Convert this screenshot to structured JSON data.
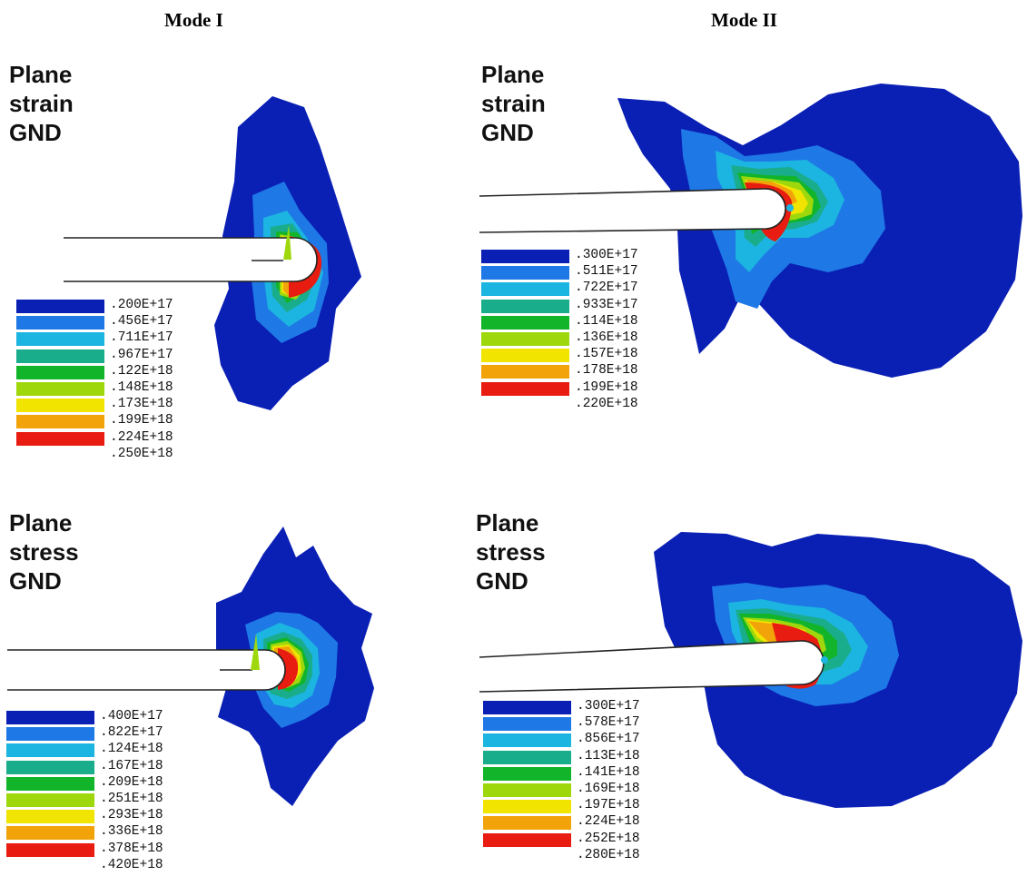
{
  "columns": [
    "Mode I",
    "Mode II"
  ],
  "panels": [
    {
      "title_lines": [
        "Plane",
        "strain",
        "GND"
      ],
      "legend": [
        ".200E+17",
        ".456E+17",
        ".711E+17",
        ".967E+17",
        ".122E+18",
        ".148E+18",
        ".173E+18",
        ".199E+18",
        ".224E+18",
        ".250E+18"
      ]
    },
    {
      "title_lines": [
        "Plane",
        "strain",
        "GND"
      ],
      "legend": [
        ".300E+17",
        ".511E+17",
        ".722E+17",
        ".933E+17",
        ".114E+18",
        ".136E+18",
        ".157E+18",
        ".178E+18",
        ".199E+18",
        ".220E+18"
      ]
    },
    {
      "title_lines": [
        "Plane",
        "stress",
        "GND"
      ],
      "legend": [
        ".400E+17",
        ".822E+17",
        ".124E+18",
        ".167E+18",
        ".209E+18",
        ".251E+18",
        ".293E+18",
        ".336E+18",
        ".378E+18",
        ".420E+18"
      ]
    },
    {
      "title_lines": [
        "Plane",
        "stress",
        "GND"
      ],
      "legend": [
        ".300E+17",
        ".578E+17",
        ".856E+17",
        ".113E+18",
        ".141E+18",
        ".169E+18",
        ".197E+18",
        ".224E+18",
        ".252E+18",
        ".280E+18"
      ]
    }
  ],
  "colors": [
    "#0a1fb4",
    "#1e78e6",
    "#1cb4e0",
    "#1aad8c",
    "#12b42a",
    "#9ed80c",
    "#f0e400",
    "#f2a30a",
    "#e81c10"
  ]
}
